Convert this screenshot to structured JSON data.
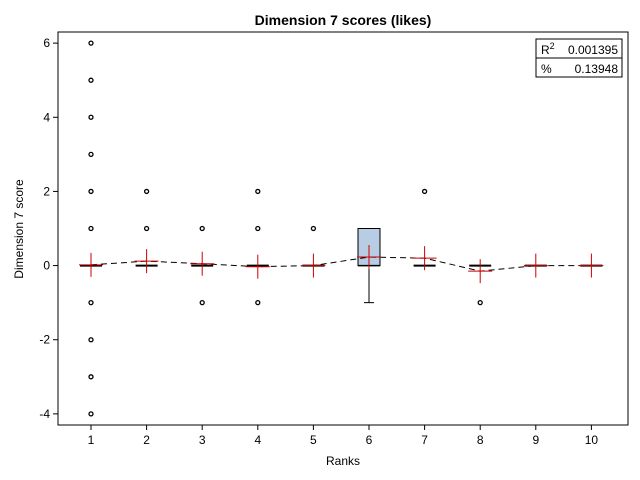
{
  "chart_data": {
    "type": "box",
    "title": "Dimension 7 scores (likes)",
    "xlabel": "Ranks",
    "ylabel": "Dimension 7 score",
    "categories": [
      "1",
      "2",
      "3",
      "4",
      "5",
      "6",
      "7",
      "8",
      "9",
      "10"
    ],
    "ylim": [
      -4.3,
      6.3
    ],
    "yticks": [
      -4,
      -2,
      0,
      2,
      4,
      6
    ],
    "ytick_labels": [
      "-4",
      "-2",
      "0",
      "2",
      "4",
      "6"
    ],
    "grid": false,
    "box_color": "#b8cce4",
    "mean_marker_color": "#cc0000",
    "boxes": [
      {
        "category": "1",
        "q1": 0,
        "median": 0,
        "q3": 0,
        "whisker_low": 0,
        "whisker_high": 0,
        "mean": 0.02,
        "outliers": [
          6,
          5,
          4,
          3,
          2,
          1,
          -1,
          -2,
          -3,
          -4
        ]
      },
      {
        "category": "2",
        "q1": 0,
        "median": 0,
        "q3": 0,
        "whisker_low": 0,
        "whisker_high": 0,
        "mean": 0.12,
        "outliers": [
          2,
          1
        ]
      },
      {
        "category": "3",
        "q1": 0,
        "median": 0,
        "q3": 0,
        "whisker_low": 0,
        "whisker_high": 0,
        "mean": 0.05,
        "outliers": [
          1,
          -1
        ]
      },
      {
        "category": "4",
        "q1": 0,
        "median": 0,
        "q3": 0,
        "whisker_low": 0,
        "whisker_high": 0,
        "mean": -0.03,
        "outliers": [
          2,
          1,
          -1
        ]
      },
      {
        "category": "5",
        "q1": 0,
        "median": 0,
        "q3": 0,
        "whisker_low": 0,
        "whisker_high": 0,
        "mean": 0.0,
        "outliers": [
          1
        ]
      },
      {
        "category": "6",
        "q1": 0,
        "median": 0,
        "q3": 1,
        "whisker_low": -1,
        "whisker_high": 1,
        "mean": 0.23,
        "outliers": []
      },
      {
        "category": "7",
        "q1": 0,
        "median": 0,
        "q3": 0,
        "whisker_low": 0,
        "whisker_high": 0,
        "mean": 0.2,
        "outliers": [
          2
        ]
      },
      {
        "category": "8",
        "q1": 0,
        "median": 0,
        "q3": 0,
        "whisker_low": 0,
        "whisker_high": 0,
        "mean": -0.15,
        "outliers": [
          -1
        ]
      },
      {
        "category": "9",
        "q1": 0,
        "median": 0,
        "q3": 0,
        "whisker_low": 0,
        "whisker_high": 0,
        "mean": 0.0,
        "outliers": []
      },
      {
        "category": "10",
        "q1": 0,
        "median": 0,
        "q3": 0,
        "whisker_low": 0,
        "whisker_high": 0,
        "mean": 0.0,
        "outliers": []
      }
    ],
    "mean_line": {
      "style": "dashed",
      "color": "#000000"
    },
    "stats_box": {
      "placement": "top-right",
      "rows": [
        {
          "label": "R",
          "superscript": "2",
          "value": "0.001395"
        },
        {
          "label": "%",
          "superscript": "",
          "value": "0.13948"
        }
      ]
    }
  }
}
